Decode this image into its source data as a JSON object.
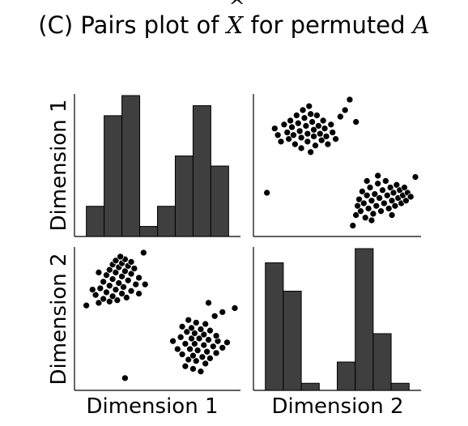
{
  "title": {
    "prefix": "(C) Pairs plot of ",
    "xhat_symbol": "X",
    "middle": " for permuted ",
    "a_symbol": "A"
  },
  "labels": {
    "dim1": "Dimension 1",
    "dim2": "Dimension 2"
  },
  "colors": {
    "bar_fill": "#3f3f3f",
    "point_fill": "#000000"
  },
  "chart_data": {
    "type": "scatter",
    "variables": [
      "Dimension 1",
      "Dimension 2"
    ],
    "ranges": {
      "Dimension 1": [
        0,
        1
      ],
      "Dimension 2": [
        0,
        1
      ]
    },
    "grid": false,
    "legend": "none",
    "hist": {
      "Dimension 1": {
        "bins": 8,
        "range": [
          0.04,
          0.96
        ],
        "counts": [
          3,
          12,
          14,
          1,
          3,
          8,
          13,
          7
        ]
      },
      "Dimension 2": {
        "bins": 8,
        "range": [
          0.04,
          0.96
        ],
        "counts": [
          18,
          14,
          1,
          0,
          4,
          20,
          8,
          1
        ]
      }
    },
    "points": [
      [
        0.1,
        0.78
      ],
      [
        0.12,
        0.73
      ],
      [
        0.14,
        0.68
      ],
      [
        0.16,
        0.81
      ],
      [
        0.18,
        0.75
      ],
      [
        0.19,
        0.7
      ],
      [
        0.2,
        0.84
      ],
      [
        0.21,
        0.79
      ],
      [
        0.22,
        0.73
      ],
      [
        0.23,
        0.66
      ],
      [
        0.24,
        0.88
      ],
      [
        0.25,
        0.82
      ],
      [
        0.26,
        0.76
      ],
      [
        0.27,
        0.71
      ],
      [
        0.27,
        0.63
      ],
      [
        0.28,
        0.92
      ],
      [
        0.29,
        0.86
      ],
      [
        0.3,
        0.8
      ],
      [
        0.31,
        0.74
      ],
      [
        0.31,
        0.68
      ],
      [
        0.32,
        0.95
      ],
      [
        0.33,
        0.89
      ],
      [
        0.34,
        0.83
      ],
      [
        0.35,
        0.77
      ],
      [
        0.35,
        0.72
      ],
      [
        0.36,
        0.65
      ],
      [
        0.37,
        0.88
      ],
      [
        0.38,
        0.8
      ],
      [
        0.39,
        0.74
      ],
      [
        0.4,
        0.69
      ],
      [
        0.41,
        0.84
      ],
      [
        0.42,
        0.78
      ],
      [
        0.43,
        0.72
      ],
      [
        0.44,
        0.66
      ],
      [
        0.46,
        0.81
      ],
      [
        0.47,
        0.75
      ],
      [
        0.49,
        0.7
      ],
      [
        0.52,
        0.87
      ],
      [
        0.55,
        0.92
      ],
      [
        0.58,
        1.0
      ],
      [
        0.62,
        0.83
      ],
      [
        0.33,
        0.6
      ],
      [
        0.05,
        0.29
      ],
      [
        0.6,
        0.04
      ],
      [
        0.62,
        0.12
      ],
      [
        0.63,
        0.19
      ],
      [
        0.64,
        0.24
      ],
      [
        0.65,
        0.15
      ],
      [
        0.66,
        0.3
      ],
      [
        0.67,
        0.21
      ],
      [
        0.68,
        0.1
      ],
      [
        0.69,
        0.27
      ],
      [
        0.7,
        0.17
      ],
      [
        0.71,
        0.33
      ],
      [
        0.72,
        0.23
      ],
      [
        0.73,
        0.13
      ],
      [
        0.74,
        0.28
      ],
      [
        0.75,
        0.19
      ],
      [
        0.76,
        0.36
      ],
      [
        0.77,
        0.25
      ],
      [
        0.78,
        0.15
      ],
      [
        0.79,
        0.31
      ],
      [
        0.8,
        0.21
      ],
      [
        0.81,
        0.38
      ],
      [
        0.82,
        0.27
      ],
      [
        0.83,
        0.17
      ],
      [
        0.84,
        0.33
      ],
      [
        0.85,
        0.23
      ],
      [
        0.86,
        0.29
      ],
      [
        0.87,
        0.19
      ],
      [
        0.88,
        0.35
      ],
      [
        0.89,
        0.25
      ],
      [
        0.9,
        0.31
      ],
      [
        0.91,
        0.21
      ],
      [
        0.92,
        0.27
      ],
      [
        0.93,
        0.33
      ],
      [
        0.94,
        0.23
      ],
      [
        0.95,
        0.29
      ],
      [
        0.97,
        0.26
      ],
      [
        1.0,
        0.41
      ],
      [
        0.76,
        0.42
      ],
      [
        0.72,
        0.08
      ],
      [
        0.85,
        0.12
      ],
      [
        0.69,
        0.38
      ]
    ]
  }
}
